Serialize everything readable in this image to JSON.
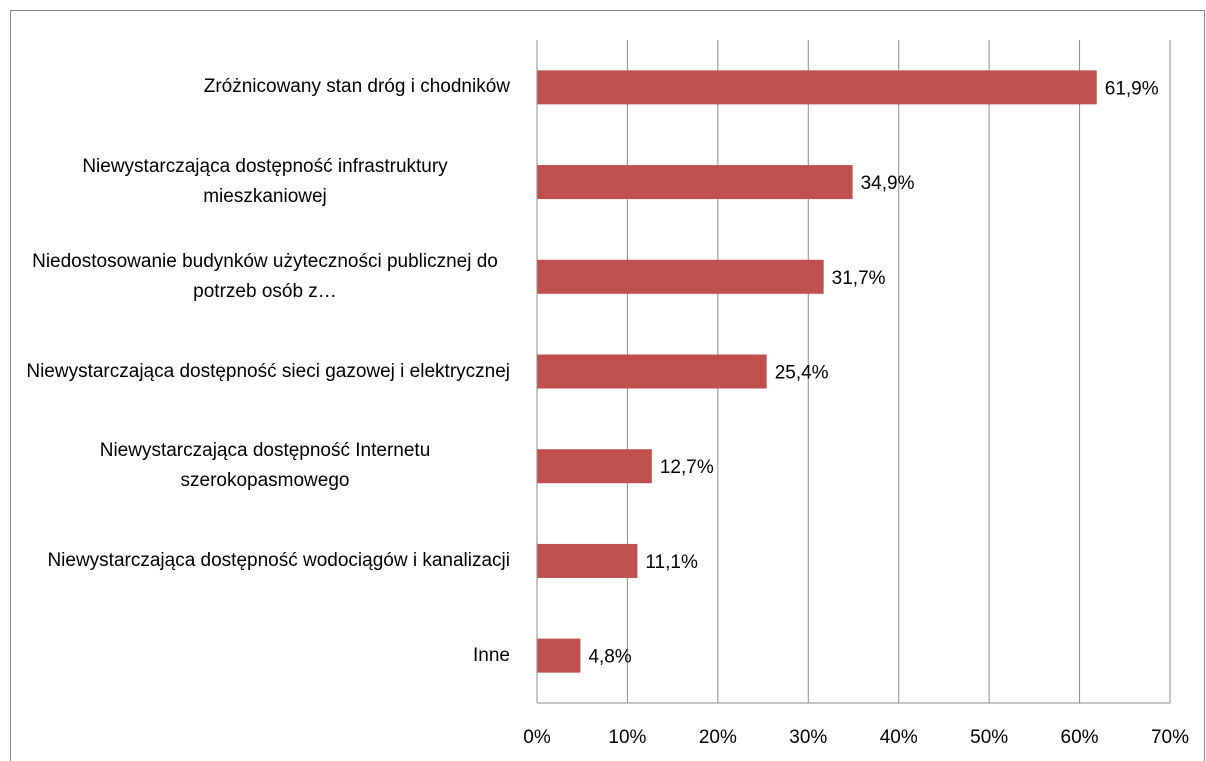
{
  "chart_data": {
    "type": "barh",
    "categories": [
      "Zróżnicowany stan dróg i chodników",
      "Niewystarczająca dostępność infrastruktury mieszkaniowej",
      "Niedostosowanie budynków użyteczności publicznej do potrzeb osób z…",
      "Niewystarczająca dostępność sieci gazowej i elektrycznej",
      "Niewystarczająca dostępność Internetu szerokopasmowego",
      "Niewystarczająca dostępność wodociągów i kanalizacji",
      "Inne"
    ],
    "values": [
      61.9,
      34.9,
      31.7,
      25.4,
      12.7,
      11.1,
      4.8
    ],
    "value_labels": [
      "61,9%",
      "34,9%",
      "31,7%",
      "25,4%",
      "12,7%",
      "11,1%",
      "4,8%"
    ],
    "color": "#c0504d",
    "xlim": [
      0,
      70
    ],
    "xticks": [
      {
        "value": 0,
        "label": "0%"
      },
      {
        "value": 10,
        "label": "10%"
      },
      {
        "value": 20,
        "label": "20%"
      },
      {
        "value": 30,
        "label": "30%"
      },
      {
        "value": 40,
        "label": "40%"
      },
      {
        "value": 50,
        "label": "50%"
      },
      {
        "value": 60,
        "label": "60%"
      },
      {
        "value": 70,
        "label": "70%"
      }
    ],
    "grid": true
  }
}
